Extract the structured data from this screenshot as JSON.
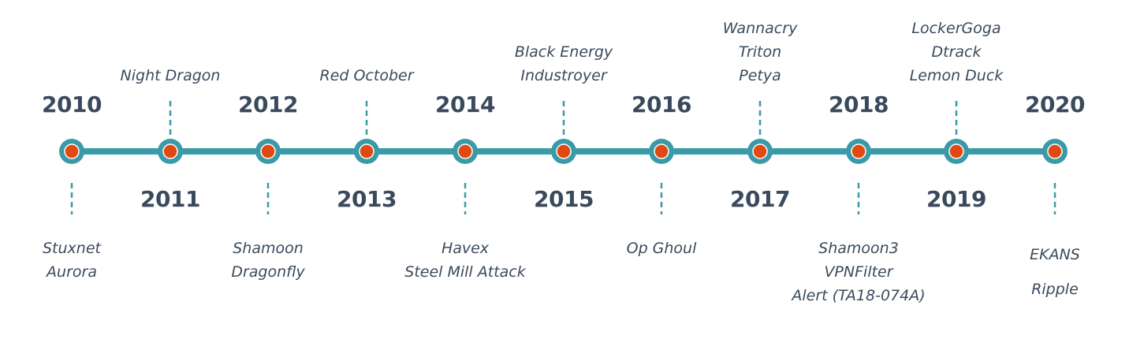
{
  "colors": {
    "line": "#3a9aa8",
    "node_ring": "#3a9aa8",
    "node_dot": "#e04a12",
    "year_text": "#3a4a5c",
    "event_text": "#3a4a5c",
    "background": "#ffffff"
  },
  "timeline": [
    {
      "year": "2010",
      "year_side": "top",
      "events_side": "bottom",
      "events": [
        "Stuxnet",
        "Aurora"
      ]
    },
    {
      "year": "2011",
      "year_side": "bottom",
      "events_side": "top",
      "events": [
        "Night Dragon"
      ]
    },
    {
      "year": "2012",
      "year_side": "top",
      "events_side": "bottom",
      "events": [
        "Shamoon",
        "Dragonfly"
      ]
    },
    {
      "year": "2013",
      "year_side": "bottom",
      "events_side": "top",
      "events": [
        "Red October"
      ]
    },
    {
      "year": "2014",
      "year_side": "top",
      "events_side": "bottom",
      "events": [
        "Havex",
        "Steel Mill Attack"
      ]
    },
    {
      "year": "2015",
      "year_side": "bottom",
      "events_side": "top",
      "events": [
        "Black Energy",
        "Industroyer"
      ]
    },
    {
      "year": "2016",
      "year_side": "top",
      "events_side": "bottom",
      "events": [
        "Op Ghoul"
      ]
    },
    {
      "year": "2017",
      "year_side": "bottom",
      "events_side": "top",
      "events": [
        "Wannacry",
        "Triton",
        "Petya"
      ]
    },
    {
      "year": "2018",
      "year_side": "top",
      "events_side": "bottom",
      "events": [
        "Shamoon3",
        "VPNFilter",
        "Alert (TA18-074A)"
      ]
    },
    {
      "year": "2019",
      "year_side": "bottom",
      "events_side": "top",
      "events": [
        "LockerGoga",
        "Dtrack",
        "Lemon Duck"
      ]
    },
    {
      "year": "2020",
      "year_side": "top",
      "events_side": "bottom",
      "events": [
        "EKANS",
        "Ripple"
      ]
    }
  ]
}
